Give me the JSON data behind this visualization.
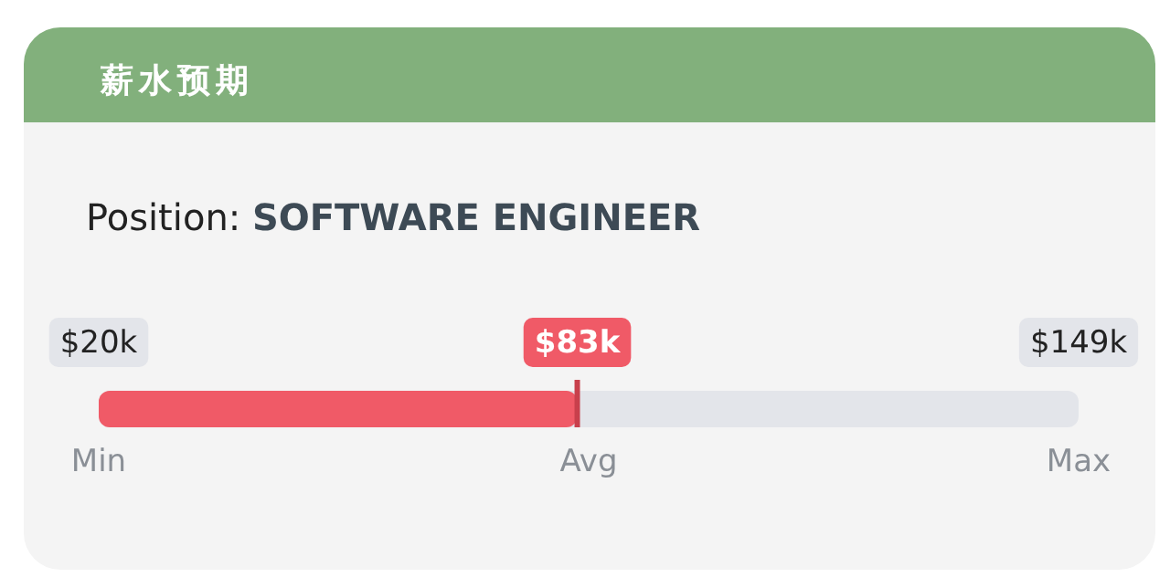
{
  "chart_data": {
    "type": "bar",
    "orientation": "horizontal",
    "title": "薪水预期",
    "subtitle": "Position: **SOFTWARE ENGINEER**",
    "categories": [
      null
    ],
    "base": [
      20
    ],
    "values": [
      63
    ],
    "color": "#f05a67",
    "xlim": [
      20,
      149
    ],
    "xticks": [
      {
        "value": 20,
        "label": "$20k"
      },
      {
        "value": 149,
        "label": "$149k"
      }
    ],
    "ref_lines": [
      {
        "axis": "x",
        "value": 83,
        "label": "$83k",
        "color": "#c8404c"
      }
    ],
    "annotations": [
      "Min",
      "Avg",
      "Max"
    ]
  }
}
